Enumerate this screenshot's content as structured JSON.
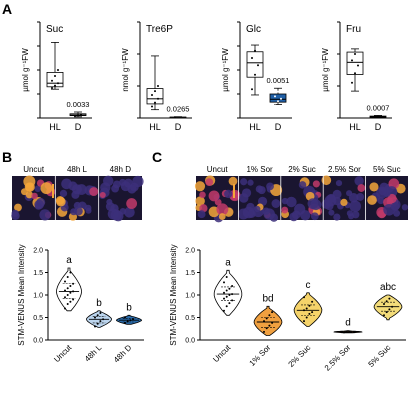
{
  "panels": {
    "a": "A",
    "b": "B",
    "c": "C"
  },
  "panel_a": {
    "plots": [
      {
        "title": "Suc",
        "ylabel": "µmol g⁻¹FW",
        "ylim": [
          0,
          8
        ],
        "yticks": [
          "0",
          "2",
          "4",
          "6",
          "8"
        ],
        "boxes": [
          {
            "group": "HL",
            "min": 2.4,
            "q1": 2.6,
            "median": 2.9,
            "q3": 3.8,
            "max": 6.3,
            "fill": "#ffffff",
            "points": [
              2.5,
              2.7,
              2.9,
              3.1,
              3.5,
              4.0
            ]
          },
          {
            "group": "D",
            "min": 0.1,
            "q1": 0.2,
            "median": 0.25,
            "q3": 0.35,
            "max": 0.5,
            "fill": "#ffffff",
            "points": [
              0.2,
              0.25,
              0.3
            ]
          }
        ],
        "pvalue": "0.0033"
      },
      {
        "title": "Tre6P",
        "ylabel": "nmol g⁻¹FW",
        "ylim": [
          0,
          15
        ],
        "yticks": [
          "0",
          "5",
          "10",
          "15"
        ],
        "boxes": [
          {
            "group": "HL",
            "min": 1.3,
            "q1": 2.2,
            "median": 3.0,
            "q3": 4.6,
            "max": 9.7,
            "fill": "#ffffff",
            "points": [
              1.8,
              2.4,
              3.0,
              3.6,
              4.2,
              5.0
            ]
          },
          {
            "group": "D",
            "min": 0.0,
            "q1": 0.05,
            "median": 0.1,
            "q3": 0.15,
            "max": 0.2,
            "fill": "#ffffff",
            "points": [
              0.1
            ]
          }
        ],
        "pvalue": "0.0265"
      },
      {
        "title": "Glc",
        "ylabel": "µmol g⁻¹FW",
        "ylim": [
          0,
          20
        ],
        "yticks": [
          "0",
          "5",
          "10",
          "15",
          "20"
        ],
        "boxes": [
          {
            "group": "HL",
            "min": 4.8,
            "q1": 8.5,
            "median": 11.5,
            "q3": 13.8,
            "max": 15.2,
            "fill": "#ffffff",
            "points": [
              6.0,
              9.0,
              11.0,
              12.5,
              14.0
            ]
          },
          {
            "group": "D",
            "min": 2.8,
            "q1": 3.3,
            "median": 3.9,
            "q3": 5.0,
            "max": 6.2,
            "fill": "#1f5fa6",
            "points": [
              3.0,
              3.5,
              4.0,
              4.5,
              5.5
            ]
          }
        ],
        "pvalue": "0.0051"
      },
      {
        "title": "Fru",
        "ylabel": "µmol g⁻¹FW",
        "ylim": [
          0,
          1.5
        ],
        "yticks": [
          "0.0",
          "0.5",
          "1.0",
          "1.5"
        ],
        "boxes": [
          {
            "group": "HL",
            "min": 0.42,
            "q1": 0.68,
            "median": 0.87,
            "q3": 1.03,
            "max": 1.08,
            "fill": "#ffffff",
            "points": [
              0.55,
              0.7,
              0.82,
              0.9,
              1.0
            ]
          },
          {
            "group": "D",
            "min": 0.0,
            "q1": 0.01,
            "median": 0.02,
            "q3": 0.03,
            "max": 0.04,
            "fill": "#ffffff",
            "points": [
              0.02
            ]
          }
        ],
        "pvalue": "0.0007"
      }
    ]
  },
  "panel_b": {
    "image_labels": [
      "Uncut",
      "48h L",
      "48h D"
    ],
    "ylabel": "STM-VENUS Mean Intensity",
    "ylim": [
      0,
      2.0
    ],
    "yticks": [
      "0.0",
      "0.5",
      "1.0",
      "1.5",
      "2.0"
    ],
    "violins": [
      {
        "category": "Uncut",
        "min": 0.65,
        "max": 1.6,
        "median": 1.08,
        "q1": 0.92,
        "q3": 1.25,
        "fill": "#ffffff",
        "letter": "a",
        "points": [
          0.7,
          0.8,
          0.85,
          0.9,
          0.95,
          1.0,
          1.05,
          1.08,
          1.1,
          1.15,
          1.2,
          1.25,
          1.3,
          1.4,
          1.5
        ]
      },
      {
        "category": "48h L",
        "min": 0.28,
        "max": 0.65,
        "median": 0.46,
        "q1": 0.38,
        "q3": 0.52,
        "fill": "#bcd5ee",
        "letter": "b",
        "points": [
          0.3,
          0.36,
          0.42,
          0.46,
          0.5,
          0.55,
          0.6
        ]
      },
      {
        "category": "48h D",
        "min": 0.35,
        "max": 0.55,
        "median": 0.44,
        "q1": 0.4,
        "q3": 0.48,
        "fill": "#2c6fb0",
        "letter": "b",
        "points": [
          0.38,
          0.41,
          0.44,
          0.46,
          0.5
        ]
      }
    ]
  },
  "panel_c": {
    "image_labels": [
      "Uncut",
      "1% Sor",
      "2% Suc",
      "2.5% Sor",
      "5% Suc"
    ],
    "ylabel": "STM-VENUS Mean Intensity",
    "ylim": [
      0,
      2.0
    ],
    "yticks": [
      "0.0",
      "0.5",
      "1.0",
      "1.5",
      "2.0"
    ],
    "violins": [
      {
        "category": "Uncut",
        "min": 0.55,
        "max": 1.55,
        "median": 1.02,
        "q1": 0.88,
        "q3": 1.18,
        "fill": "#ffffff",
        "letter": "a",
        "points": [
          0.65,
          0.75,
          0.82,
          0.88,
          0.92,
          0.96,
          1.0,
          1.02,
          1.05,
          1.1,
          1.14,
          1.2,
          1.28,
          1.4
        ]
      },
      {
        "category": "1% Sor",
        "min": 0.1,
        "max": 0.75,
        "median": 0.4,
        "q1": 0.28,
        "q3": 0.5,
        "fill": "#f0a040",
        "letter": "bd",
        "points": [
          0.18,
          0.26,
          0.32,
          0.38,
          0.42,
          0.48,
          0.55,
          0.62
        ]
      },
      {
        "category": "2% Suc",
        "min": 0.3,
        "max": 1.05,
        "median": 0.66,
        "q1": 0.55,
        "q3": 0.78,
        "fill": "#f5d36a",
        "letter": "c",
        "points": [
          0.42,
          0.5,
          0.58,
          0.62,
          0.66,
          0.7,
          0.76,
          0.85,
          0.95
        ]
      },
      {
        "category": "2.5% Sor",
        "min": 0.16,
        "max": 0.21,
        "median": 0.18,
        "q1": 0.17,
        "q3": 0.19,
        "fill": "#e07a2a",
        "letter": "d",
        "points": [
          0.17,
          0.18,
          0.19
        ]
      },
      {
        "category": "5% Suc",
        "min": 0.45,
        "max": 1.0,
        "median": 0.74,
        "q1": 0.64,
        "q3": 0.84,
        "fill": "#f3dc7a",
        "letter": "abc",
        "points": [
          0.55,
          0.62,
          0.68,
          0.74,
          0.8,
          0.86,
          0.92
        ]
      }
    ]
  },
  "colors": {
    "dark_bg": "#1a1530",
    "cell_bright": "#f4a63a",
    "cell_mid": "#c23a6a",
    "cell_dim": "#3c2f7a"
  }
}
